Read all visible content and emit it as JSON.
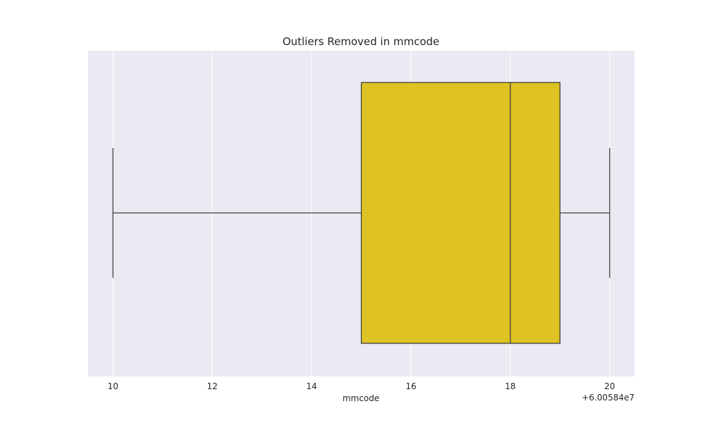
{
  "chart_data": {
    "type": "box",
    "title": "Outliers Removed in mmcode",
    "xlabel": "mmcode",
    "ylabel": "",
    "offset_label": "+6.00584e7",
    "xlim": [
      9.5,
      20.5
    ],
    "xticks": [
      10,
      12,
      14,
      16,
      18,
      20
    ],
    "xtick_labels": [
      "10",
      "12",
      "14",
      "16",
      "18",
      "20"
    ],
    "grid": true,
    "box": {
      "whisker_low": 10,
      "q1": 15,
      "median": 18,
      "q3": 19,
      "whisker_high": 20
    },
    "colors": {
      "background": "#eaeaf2",
      "box_fill": "#dfc223",
      "line": "#404040",
      "grid": "#ffffff"
    }
  }
}
